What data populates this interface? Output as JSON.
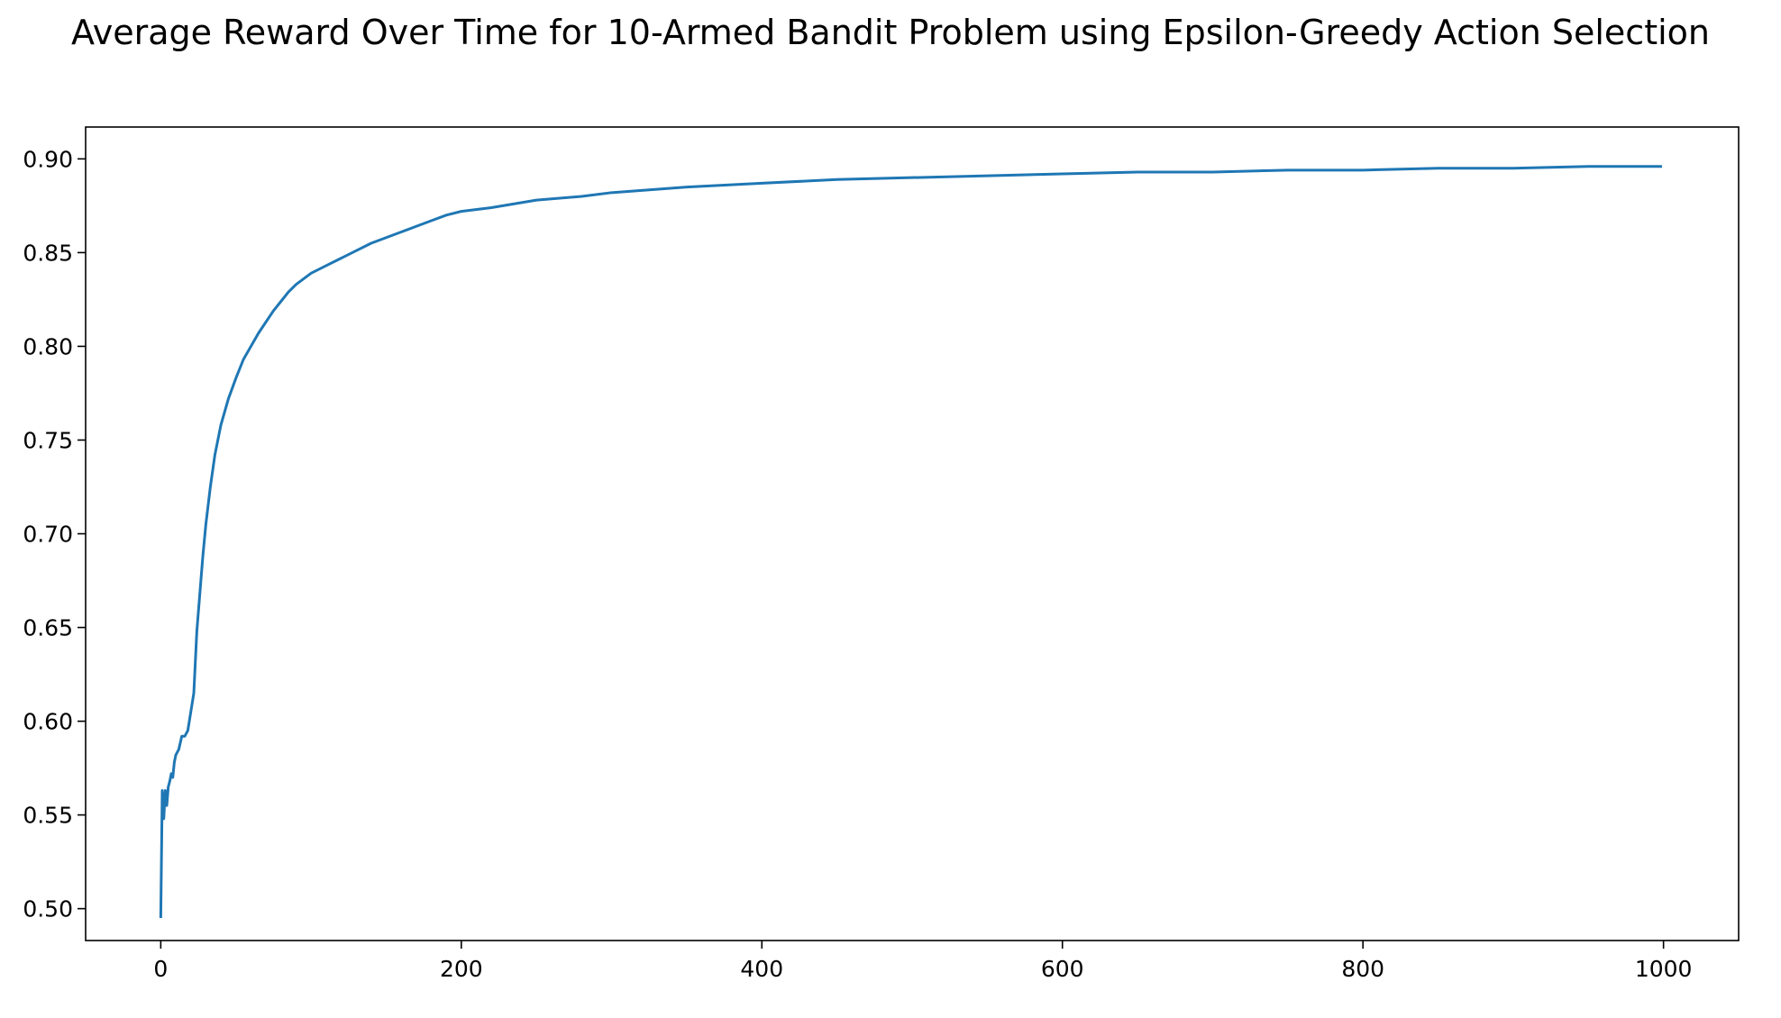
{
  "chart_data": {
    "type": "line",
    "title": "Average Reward Over Time for 10-Armed Bandit Problem using Epsilon-Greedy Action Selection",
    "xlabel": "",
    "ylabel": "",
    "xlim": [
      -50,
      1050
    ],
    "ylim": [
      0.483,
      0.917
    ],
    "xticks": [
      0,
      200,
      400,
      600,
      800,
      1000
    ],
    "xtick_labels": [
      "0",
      "200",
      "400",
      "600",
      "800",
      "1000"
    ],
    "yticks": [
      0.5,
      0.55,
      0.6,
      0.65,
      0.7,
      0.75,
      0.8,
      0.85,
      0.9
    ],
    "ytick_labels": [
      "0.50",
      "0.55",
      "0.60",
      "0.65",
      "0.70",
      "0.75",
      "0.80",
      "0.85",
      "0.90"
    ],
    "grid": false,
    "legend": "none",
    "colors": {
      "line": "#1f77b4",
      "axes": "#000000",
      "background": "#ffffff"
    },
    "series": [
      {
        "x": [
          0,
          1,
          2,
          3,
          4,
          5,
          6,
          7,
          8,
          9,
          10,
          12,
          14,
          16,
          18,
          20,
          22,
          24,
          26,
          28,
          30,
          33,
          36,
          40,
          45,
          50,
          55,
          60,
          65,
          70,
          75,
          80,
          85,
          90,
          95,
          100,
          110,
          120,
          130,
          140,
          150,
          160,
          170,
          180,
          190,
          200,
          220,
          250,
          280,
          300,
          350,
          400,
          450,
          500,
          550,
          600,
          650,
          700,
          750,
          800,
          850,
          900,
          950,
          999
        ],
        "y": [
          0.495,
          0.563,
          0.548,
          0.563,
          0.555,
          0.565,
          0.568,
          0.572,
          0.57,
          0.578,
          0.582,
          0.585,
          0.592,
          0.592,
          0.595,
          0.605,
          0.615,
          0.648,
          0.668,
          0.688,
          0.705,
          0.725,
          0.742,
          0.758,
          0.772,
          0.783,
          0.793,
          0.8,
          0.807,
          0.813,
          0.819,
          0.824,
          0.829,
          0.833,
          0.836,
          0.839,
          0.843,
          0.847,
          0.851,
          0.855,
          0.858,
          0.861,
          0.864,
          0.867,
          0.87,
          0.872,
          0.874,
          0.878,
          0.88,
          0.882,
          0.885,
          0.887,
          0.889,
          0.89,
          0.891,
          0.892,
          0.893,
          0.893,
          0.894,
          0.894,
          0.895,
          0.895,
          0.896,
          0.896
        ]
      }
    ]
  }
}
